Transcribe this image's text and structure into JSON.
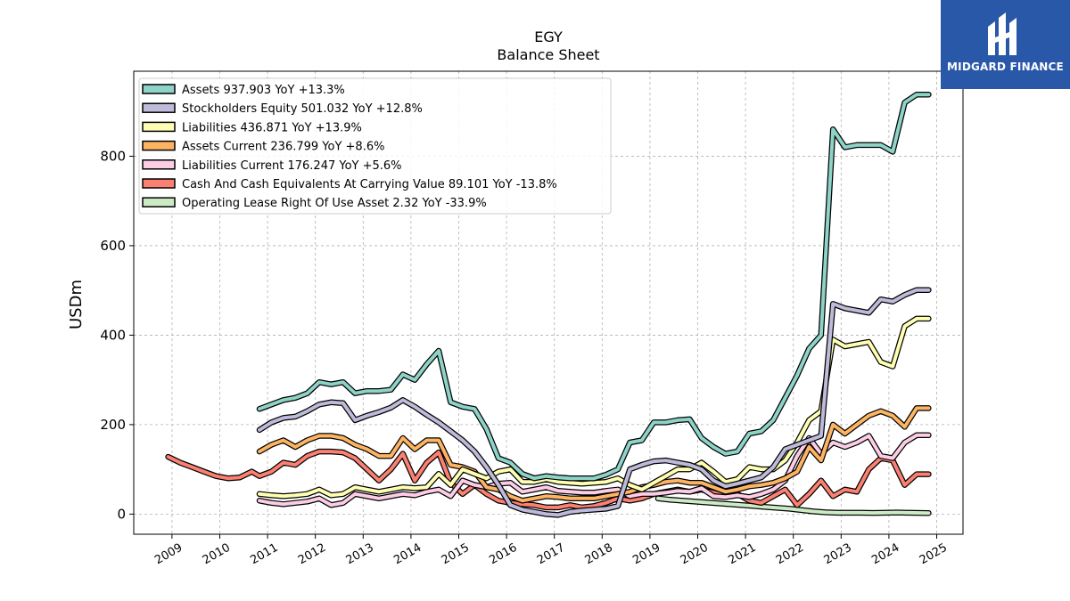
{
  "brand": {
    "name": "MIDGARD FINANCE",
    "bg_color": "#2a58a8"
  },
  "chart_data": {
    "type": "line",
    "title": "EGY",
    "subtitle": "Balance  Sheet",
    "xlabel": "",
    "ylabel": "USDm",
    "xlim": [
      2008.2,
      2025.55
    ],
    "ylim": [
      -45,
      990
    ],
    "x_ticks": [
      2009,
      2010,
      2011,
      2012,
      2013,
      2014,
      2015,
      2016,
      2017,
      2018,
      2019,
      2020,
      2021,
      2022,
      2023,
      2024,
      2025
    ],
    "y_ticks": [
      0,
      200,
      400,
      600,
      800
    ],
    "grid": true,
    "legend_position": "top-left",
    "series": [
      {
        "name": "Assets",
        "legend": "Assets  937.903 YoY +13.3%",
        "color": "#8dd3c7",
        "x": [
          2010.83,
          2011.08,
          2011.33,
          2011.58,
          2011.83,
          2012.08,
          2012.33,
          2012.58,
          2012.83,
          2013.08,
          2013.33,
          2013.58,
          2013.83,
          2014.08,
          2014.33,
          2014.58,
          2014.83,
          2015.08,
          2015.33,
          2015.58,
          2015.83,
          2016.08,
          2016.33,
          2016.58,
          2016.83,
          2017.08,
          2017.33,
          2017.58,
          2017.83,
          2018.08,
          2018.33,
          2018.58,
          2018.83,
          2019.08,
          2019.33,
          2019.58,
          2019.83,
          2020.08,
          2020.33,
          2020.58,
          2020.83,
          2021.08,
          2021.33,
          2021.58,
          2021.83,
          2022.08,
          2022.33,
          2022.58,
          2022.83,
          2023.08,
          2023.33,
          2023.58,
          2023.83,
          2024.08,
          2024.33,
          2024.58,
          2024.83
        ],
        "y": [
          235,
          245,
          255,
          260,
          270,
          295,
          290,
          295,
          270,
          275,
          275,
          278,
          312,
          300,
          335,
          365,
          250,
          240,
          235,
          190,
          125,
          115,
          90,
          80,
          85,
          82,
          80,
          80,
          80,
          88,
          100,
          160,
          165,
          205,
          205,
          210,
          212,
          170,
          150,
          135,
          140,
          180,
          185,
          210,
          260,
          310,
          370,
          400,
          860,
          820,
          825,
          825,
          825,
          810,
          920,
          937.903,
          937.903
        ]
      },
      {
        "name": "Stockholders Equity",
        "legend": "Stockholders Equity  501.032 YoY +12.8%",
        "color": "#bebada",
        "x": [
          2010.83,
          2011.08,
          2011.33,
          2011.58,
          2011.83,
          2012.08,
          2012.33,
          2012.58,
          2012.83,
          2013.08,
          2013.33,
          2013.58,
          2013.83,
          2014.08,
          2014.33,
          2014.58,
          2014.83,
          2015.08,
          2015.33,
          2015.58,
          2015.83,
          2016.08,
          2016.33,
          2016.58,
          2016.83,
          2017.08,
          2017.33,
          2017.58,
          2017.83,
          2018.08,
          2018.33,
          2018.58,
          2018.83,
          2019.08,
          2019.33,
          2019.58,
          2019.83,
          2020.08,
          2020.33,
          2020.58,
          2020.83,
          2021.08,
          2021.33,
          2021.58,
          2021.83,
          2022.08,
          2022.33,
          2022.58,
          2022.83,
          2023.08,
          2023.33,
          2023.58,
          2023.83,
          2024.08,
          2024.33,
          2024.58,
          2024.83
        ],
        "y": [
          188,
          205,
          215,
          218,
          230,
          245,
          250,
          248,
          210,
          220,
          228,
          238,
          255,
          240,
          222,
          205,
          185,
          165,
          140,
          105,
          65,
          20,
          10,
          5,
          0,
          -2,
          5,
          8,
          10,
          12,
          18,
          100,
          110,
          118,
          120,
          115,
          110,
          100,
          75,
          62,
          68,
          75,
          82,
          105,
          145,
          155,
          165,
          175,
          470,
          460,
          455,
          450,
          480,
          475,
          490,
          501.032,
          501.032
        ]
      },
      {
        "name": "Liabilities",
        "legend": "Liabilities  436.871 YoY +13.9%",
        "color": "#ffffb3",
        "x": [
          2010.83,
          2011.08,
          2011.33,
          2011.58,
          2011.83,
          2012.08,
          2012.33,
          2012.58,
          2012.83,
          2013.08,
          2013.33,
          2013.58,
          2013.83,
          2014.08,
          2014.33,
          2014.58,
          2014.83,
          2015.08,
          2015.33,
          2015.58,
          2015.83,
          2016.08,
          2016.33,
          2016.58,
          2016.83,
          2017.08,
          2017.33,
          2017.58,
          2017.83,
          2018.08,
          2018.33,
          2018.58,
          2018.83,
          2019.08,
          2019.33,
          2019.58,
          2019.83,
          2020.08,
          2020.33,
          2020.58,
          2020.83,
          2021.08,
          2021.33,
          2021.58,
          2021.83,
          2022.08,
          2022.33,
          2022.58,
          2022.83,
          2023.08,
          2023.33,
          2023.58,
          2023.83,
          2024.08,
          2024.33,
          2024.58,
          2024.83
        ],
        "y": [
          45,
          42,
          40,
          42,
          45,
          55,
          42,
          45,
          60,
          55,
          50,
          55,
          60,
          58,
          60,
          90,
          65,
          100,
          90,
          80,
          95,
          100,
          72,
          72,
          78,
          72,
          70,
          68,
          70,
          72,
          80,
          65,
          55,
          70,
          85,
          100,
          100,
          115,
          95,
          72,
          78,
          105,
          100,
          100,
          120,
          160,
          210,
          230,
          390,
          375,
          380,
          385,
          340,
          330,
          420,
          436.871,
          436.871
        ]
      },
      {
        "name": "Assets Current",
        "legend": "Assets Current  236.799 YoY +8.6%",
        "color": "#fdb462",
        "x": [
          2010.83,
          2011.08,
          2011.33,
          2011.58,
          2011.83,
          2012.08,
          2012.33,
          2012.58,
          2012.83,
          2013.08,
          2013.33,
          2013.58,
          2013.83,
          2014.08,
          2014.33,
          2014.58,
          2014.83,
          2015.08,
          2015.33,
          2015.58,
          2015.83,
          2016.08,
          2016.33,
          2016.58,
          2016.83,
          2017.08,
          2017.33,
          2017.58,
          2017.83,
          2018.08,
          2018.33,
          2018.58,
          2018.83,
          2019.08,
          2019.33,
          2019.58,
          2019.83,
          2020.08,
          2020.33,
          2020.58,
          2020.83,
          2021.08,
          2021.33,
          2021.58,
          2021.83,
          2022.08,
          2022.33,
          2022.58,
          2022.83,
          2023.08,
          2023.33,
          2023.58,
          2023.83,
          2024.08,
          2024.33,
          2024.58,
          2024.83
        ],
        "y": [
          140,
          155,
          165,
          150,
          165,
          175,
          175,
          170,
          155,
          145,
          130,
          130,
          170,
          145,
          165,
          165,
          110,
          105,
          95,
          60,
          55,
          40,
          30,
          35,
          40,
          38,
          35,
          35,
          35,
          40,
          45,
          50,
          60,
          65,
          72,
          75,
          70,
          70,
          60,
          50,
          55,
          62,
          65,
          70,
          80,
          95,
          150,
          120,
          200,
          180,
          200,
          220,
          230,
          220,
          195,
          236.799,
          236.799
        ]
      },
      {
        "name": "Liabilities Current",
        "legend": "Liabilities Current  176.247 YoY +5.6%",
        "color": "#fccde5",
        "x": [
          2010.83,
          2011.08,
          2011.33,
          2011.58,
          2011.83,
          2012.08,
          2012.33,
          2012.58,
          2012.83,
          2013.08,
          2013.33,
          2013.58,
          2013.83,
          2014.08,
          2014.33,
          2014.58,
          2014.83,
          2015.08,
          2015.33,
          2015.58,
          2015.83,
          2016.08,
          2016.33,
          2016.58,
          2016.83,
          2017.08,
          2017.33,
          2017.58,
          2017.83,
          2018.08,
          2018.33,
          2018.58,
          2018.83,
          2019.08,
          2019.33,
          2019.58,
          2019.83,
          2020.08,
          2020.33,
          2020.58,
          2020.83,
          2021.08,
          2021.33,
          2021.58,
          2021.83,
          2022.08,
          2022.33,
          2022.58,
          2022.83,
          2023.08,
          2023.33,
          2023.58,
          2023.83,
          2024.08,
          2024.33,
          2024.58,
          2024.83
        ],
        "y": [
          30,
          25,
          22,
          25,
          28,
          35,
          20,
          25,
          45,
          40,
          35,
          40,
          45,
          42,
          50,
          55,
          40,
          75,
          65,
          60,
          68,
          70,
          50,
          55,
          60,
          52,
          50,
          48,
          48,
          52,
          55,
          40,
          45,
          45,
          48,
          52,
          50,
          58,
          40,
          38,
          42,
          38,
          45,
          55,
          75,
          130,
          170,
          135,
          160,
          150,
          160,
          175,
          130,
          125,
          160,
          176.247,
          176.247
        ]
      },
      {
        "name": "Cash And Cash Equivalents At Carrying Value",
        "legend": "Cash And Cash Equivalents At Carrying Value  89.101 YoY -13.8%",
        "color": "#fb8072",
        "x": [
          2008.92,
          2009.17,
          2009.42,
          2009.67,
          2009.92,
          2010.17,
          2010.42,
          2010.67,
          2010.83,
          2011.08,
          2011.33,
          2011.58,
          2011.83,
          2012.08,
          2012.33,
          2012.58,
          2012.83,
          2013.08,
          2013.33,
          2013.58,
          2013.83,
          2014.08,
          2014.33,
          2014.58,
          2014.83,
          2015.08,
          2015.33,
          2015.58,
          2015.83,
          2016.08,
          2016.33,
          2016.58,
          2016.83,
          2017.08,
          2017.33,
          2017.58,
          2017.83,
          2018.08,
          2018.33,
          2018.58,
          2018.83,
          2019.08,
          2019.33,
          2019.58,
          2019.83,
          2020.08,
          2020.33,
          2020.58,
          2020.83,
          2021.08,
          2021.33,
          2021.58,
          2021.83,
          2022.08,
          2022.33,
          2022.58,
          2022.83,
          2023.08,
          2023.33,
          2023.58,
          2023.83,
          2024.08,
          2024.33,
          2024.58,
          2024.83
        ],
        "y": [
          128,
          115,
          105,
          95,
          85,
          80,
          82,
          95,
          85,
          95,
          115,
          110,
          130,
          140,
          140,
          138,
          125,
          100,
          75,
          100,
          135,
          75,
          115,
          138,
          70,
          45,
          65,
          45,
          30,
          25,
          22,
          20,
          15,
          15,
          20,
          15,
          18,
          25,
          35,
          30,
          35,
          45,
          50,
          55,
          50,
          55,
          48,
          40,
          45,
          30,
          25,
          40,
          55,
          20,
          45,
          75,
          40,
          55,
          50,
          100,
          125,
          120,
          65,
          89.101,
          89.101
        ]
      },
      {
        "name": "Operating Lease Right Of Use Asset",
        "legend": "Operating Lease Right Of Use Asset  2.32 YoY -33.9%",
        "color": "#ccebc5",
        "x": [
          2019.17,
          2019.42,
          2019.67,
          2019.92,
          2020.17,
          2020.42,
          2020.67,
          2020.92,
          2021.17,
          2021.42,
          2021.67,
          2021.92,
          2022.17,
          2022.42,
          2022.67,
          2022.92,
          2023.17,
          2023.42,
          2023.67,
          2023.92,
          2024.17,
          2024.42,
          2024.67,
          2024.83
        ],
        "y": [
          35,
          32,
          30,
          28,
          26,
          24,
          22,
          20,
          18,
          16,
          14,
          12,
          9,
          6,
          4,
          3,
          3,
          3,
          2.5,
          3,
          3.5,
          3,
          2.5,
          2.32
        ]
      }
    ]
  }
}
